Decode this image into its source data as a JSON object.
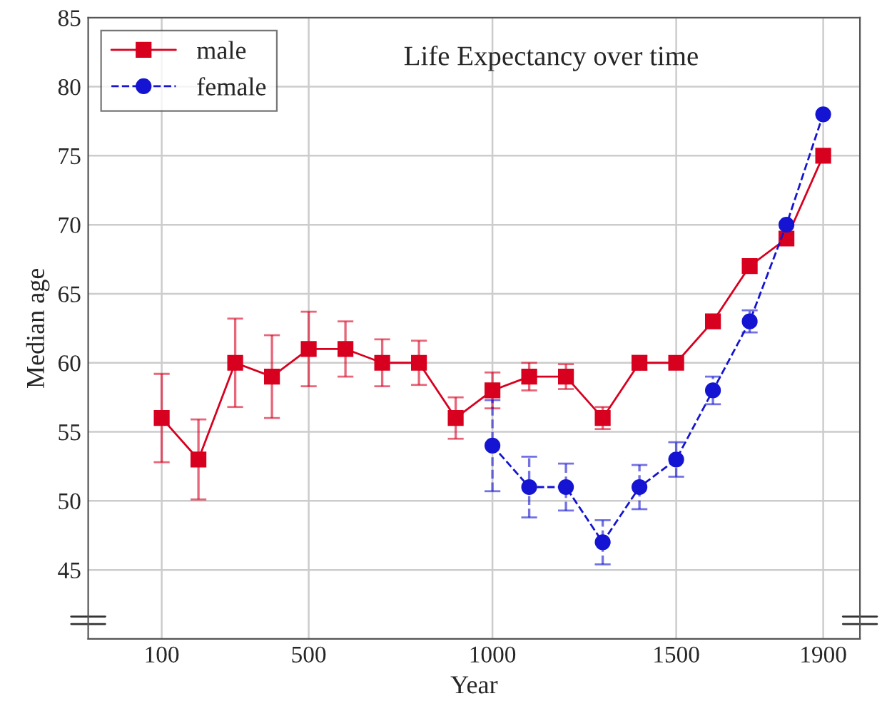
{
  "chart_data": {
    "type": "line",
    "title": "Life Expectancy over time",
    "xlabel": "Year",
    "ylabel": "Median age",
    "xlim": [
      -100,
      2000
    ],
    "xticks": [
      100,
      500,
      1000,
      1500,
      1900
    ],
    "ylim": [
      40,
      85
    ],
    "yticks": [
      45,
      50,
      55,
      60,
      65,
      70,
      75,
      80,
      85
    ],
    "grid": true,
    "legend": "top left",
    "series": [
      {
        "name": "male",
        "color": "#d7001f",
        "marker": "square",
        "line_style": "solid",
        "x": [
          100,
          200,
          300,
          400,
          500,
          600,
          700,
          800,
          900,
          1000,
          1100,
          1200,
          1300,
          1400,
          1500,
          1600,
          1700,
          1800,
          1900
        ],
        "values": [
          56,
          53,
          60,
          59,
          61,
          61,
          60,
          60,
          56,
          58,
          59,
          59,
          56,
          60,
          60,
          63,
          67,
          69,
          75
        ],
        "errors": [
          3.2,
          2.9,
          3.2,
          3,
          2.7,
          2,
          1.7,
          1.6,
          1.5,
          1.3,
          1,
          0.9,
          0.8,
          0.5,
          null,
          null,
          null,
          null,
          null
        ]
      },
      {
        "name": "female",
        "color": "#1414d2",
        "marker": "circle",
        "line_style": "dashed",
        "x": [
          1000,
          1100,
          1200,
          1300,
          1400,
          1500,
          1600,
          1700,
          1800,
          1900
        ],
        "values": [
          54,
          51,
          51,
          47,
          51,
          53,
          58,
          63,
          70,
          78
        ],
        "errors": [
          3.3,
          2.2,
          1.7,
          1.6,
          1.6,
          1.25,
          1,
          0.8,
          null,
          null
        ]
      }
    ]
  }
}
